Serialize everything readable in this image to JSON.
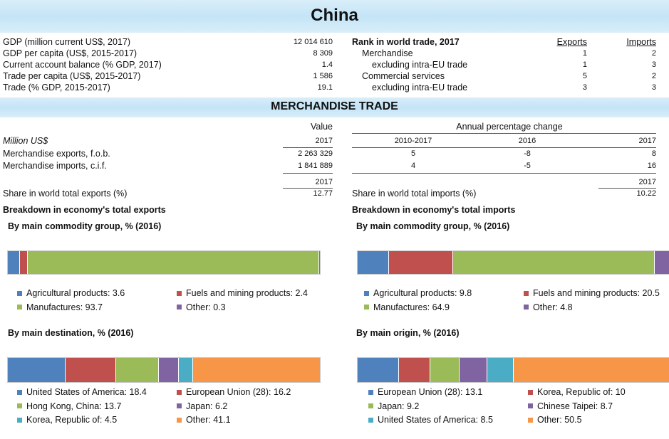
{
  "title": "China",
  "profile": [
    {
      "label": "GDP (million current US$, 2017)",
      "value": "12 014 610"
    },
    {
      "label": "GDP per capita (US$, 2015-2017)",
      "value": "8 309"
    },
    {
      "label": "Current account balance (% GDP, 2017)",
      "value": "1.4"
    },
    {
      "label": "Trade per capita (US$, 2015-2017)",
      "value": "1 586"
    },
    {
      "label": "Trade (% GDP, 2015-2017)",
      "value": "19.1"
    }
  ],
  "rank": {
    "heading": "Rank in world trade, 2017",
    "col_exports": "Exports",
    "col_imports": "Imports",
    "rows": [
      {
        "label": "Merchandise",
        "exports": "1",
        "imports": "2"
      },
      {
        "label": "excluding intra-EU trade",
        "exports": "1",
        "imports": "3"
      },
      {
        "label": "Commercial services",
        "exports": "5",
        "imports": "2"
      },
      {
        "label": "excluding intra-EU trade",
        "exports": "3",
        "imports": "3"
      }
    ]
  },
  "merch": {
    "section_title": "MERCHANDISE TRADE",
    "value_header": "Value",
    "annual_header": "Annual percentage change",
    "unit_label": "Million US$",
    "year_2017": "2017",
    "period_1": "2010-2017",
    "period_2": "2016",
    "period_3": "2017",
    "rows": [
      {
        "label": "Merchandise exports, f.o.b.",
        "value": "2 263 329",
        "p1": "5",
        "p2": "-8",
        "p3": "8"
      },
      {
        "label": "Merchandise imports, c.i.f.",
        "value": "1 841 889",
        "p1": "4",
        "p2": "-5",
        "p3": "16"
      }
    ],
    "share_year": "2017",
    "share_exports_label": "Share in world total exports (%)",
    "share_exports_value": "12.77",
    "share_imports_label": "Share in world total imports (%)",
    "share_imports_value": "10.22"
  },
  "breakdown": {
    "exports_heading": "Breakdown in economy's total exports",
    "imports_heading": "Breakdown in economy's total imports",
    "exp_commodity_title": "By main commodity group, % (2016)",
    "imp_commodity_title": "By main commodity group, % (2016)",
    "exp_dest_title": "By main destination, % (2016)",
    "imp_origin_title": "By main origin, % (2016)",
    "exp_commodity": [
      {
        "label": "Agricultural products: 3.6",
        "value": 3.6,
        "color": "#4f81bd"
      },
      {
        "label": "Fuels and mining products: 2.4",
        "value": 2.4,
        "color": "#c0504d"
      },
      {
        "label": "Manufactures: 93.7",
        "value": 93.7,
        "color": "#9bbb59"
      },
      {
        "label": "Other: 0.3",
        "value": 0.3,
        "color": "#8064a2"
      }
    ],
    "imp_commodity": [
      {
        "label": "Agricultural products: 9.8",
        "value": 9.8,
        "color": "#4f81bd"
      },
      {
        "label": "Fuels and mining products: 20.5",
        "value": 20.5,
        "color": "#c0504d"
      },
      {
        "label": "Manufactures: 64.9",
        "value": 64.9,
        "color": "#9bbb59"
      },
      {
        "label": "Other: 4.8",
        "value": 4.8,
        "color": "#8064a2"
      }
    ],
    "exp_dest": [
      {
        "label": "United States of America: 18.4",
        "value": 18.4,
        "color": "#4f81bd"
      },
      {
        "label": "European Union (28): 16.2",
        "value": 16.2,
        "color": "#c0504d"
      },
      {
        "label": "Hong Kong, China: 13.7",
        "value": 13.7,
        "color": "#9bbb59"
      },
      {
        "label": "Japan: 6.2",
        "value": 6.2,
        "color": "#8064a2"
      },
      {
        "label": "Korea, Republic of: 4.5",
        "value": 4.5,
        "color": "#4bacc6"
      },
      {
        "label": "Other: 41.1",
        "value": 41.1,
        "color": "#f79646"
      }
    ],
    "imp_origin": [
      {
        "label": "European Union (28): 13.1",
        "value": 13.1,
        "color": "#4f81bd"
      },
      {
        "label": "Korea, Republic of: 10",
        "value": 10,
        "color": "#c0504d"
      },
      {
        "label": "Japan: 9.2",
        "value": 9.2,
        "color": "#9bbb59"
      },
      {
        "label": "Chinese Taipei: 8.7",
        "value": 8.7,
        "color": "#8064a2"
      },
      {
        "label": "United States of America: 8.5",
        "value": 8.5,
        "color": "#4bacc6"
      },
      {
        "label": "Other: 50.5",
        "value": 50.5,
        "color": "#f79646"
      }
    ]
  }
}
